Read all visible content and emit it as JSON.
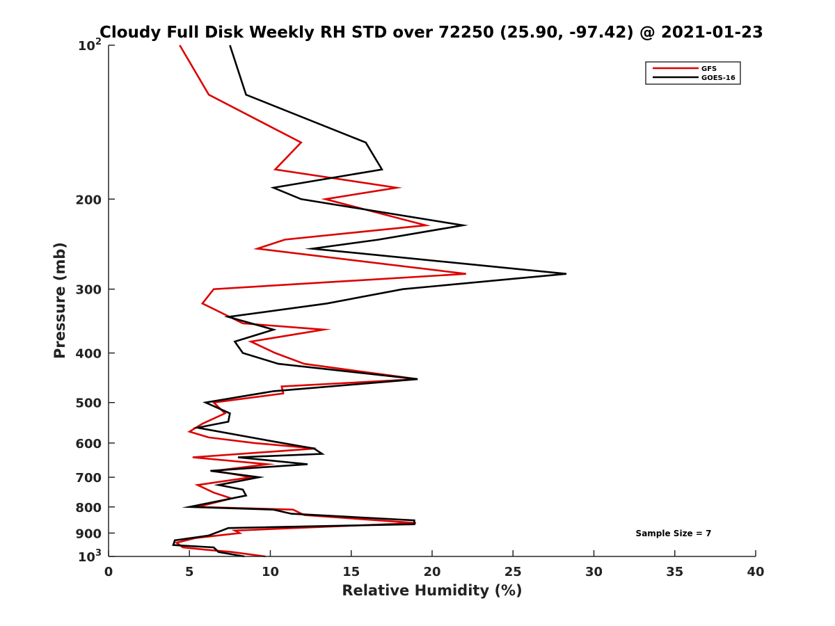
{
  "chart_data": {
    "type": "line",
    "title": "Cloudy Full Disk Weekly RH STD over 72250 (25.90, -97.42) @ 2021-01-23",
    "xlabel": "Relative Humidity (%)",
    "ylabel": "Pressure (mb)",
    "xlim": [
      0,
      40
    ],
    "ylim": [
      100,
      1000
    ],
    "y_scale": "log",
    "y_reversed": true,
    "x_ticks": [
      0,
      5,
      10,
      15,
      20,
      25,
      30,
      35,
      40
    ],
    "x_tick_labels": [
      "0",
      "5",
      "10",
      "15",
      "20",
      "25",
      "30",
      "35",
      "40"
    ],
    "y_ticks": [
      100,
      200,
      300,
      400,
      500,
      600,
      700,
      800,
      900,
      1000
    ],
    "y_tick_labels": [
      "10^2",
      "200",
      "300",
      "400",
      "500",
      "600",
      "700",
      "800",
      "900",
      "10^3"
    ],
    "grid": false,
    "legend_position": "top-right",
    "annotation": "Sample Size = 7",
    "series": [
      {
        "name": "GFS",
        "color": "#dd0000",
        "points": [
          {
            "x": 4.4,
            "y": 100
          },
          {
            "x": 6.2,
            "y": 125
          },
          {
            "x": 11.9,
            "y": 155
          },
          {
            "x": 10.3,
            "y": 175
          },
          {
            "x": 17.8,
            "y": 190
          },
          {
            "x": 13.4,
            "y": 200
          },
          {
            "x": 19.6,
            "y": 225
          },
          {
            "x": 10.9,
            "y": 240
          },
          {
            "x": 9.2,
            "y": 250
          },
          {
            "x": 22.1,
            "y": 280
          },
          {
            "x": 6.5,
            "y": 300
          },
          {
            "x": 5.8,
            "y": 320
          },
          {
            "x": 8.3,
            "y": 350
          },
          {
            "x": 13.3,
            "y": 360
          },
          {
            "x": 8.8,
            "y": 380
          },
          {
            "x": 10.3,
            "y": 400
          },
          {
            "x": 12.1,
            "y": 420
          },
          {
            "x": 19.1,
            "y": 450
          },
          {
            "x": 10.7,
            "y": 465
          },
          {
            "x": 10.8,
            "y": 480
          },
          {
            "x": 6.5,
            "y": 500
          },
          {
            "x": 7.2,
            "y": 525
          },
          {
            "x": 5.8,
            "y": 550
          },
          {
            "x": 5.0,
            "y": 570
          },
          {
            "x": 6.2,
            "y": 585
          },
          {
            "x": 9.0,
            "y": 600
          },
          {
            "x": 12.8,
            "y": 615
          },
          {
            "x": 5.2,
            "y": 640
          },
          {
            "x": 9.8,
            "y": 660
          },
          {
            "x": 6.6,
            "y": 680
          },
          {
            "x": 8.8,
            "y": 700
          },
          {
            "x": 5.5,
            "y": 725
          },
          {
            "x": 6.5,
            "y": 750
          },
          {
            "x": 7.6,
            "y": 770
          },
          {
            "x": 5.5,
            "y": 800
          },
          {
            "x": 11.4,
            "y": 810
          },
          {
            "x": 12.1,
            "y": 830
          },
          {
            "x": 19.0,
            "y": 860
          },
          {
            "x": 7.8,
            "y": 890
          },
          {
            "x": 8.1,
            "y": 900
          },
          {
            "x": 5.4,
            "y": 920
          },
          {
            "x": 4.2,
            "y": 940
          },
          {
            "x": 4.6,
            "y": 960
          },
          {
            "x": 6.0,
            "y": 970
          },
          {
            "x": 7.6,
            "y": 980
          },
          {
            "x": 9.7,
            "y": 1000
          }
        ]
      },
      {
        "name": "GOES-16",
        "color": "#000000",
        "points": [
          {
            "x": 7.5,
            "y": 100
          },
          {
            "x": 8.5,
            "y": 125
          },
          {
            "x": 15.9,
            "y": 155
          },
          {
            "x": 16.9,
            "y": 175
          },
          {
            "x": 10.2,
            "y": 190
          },
          {
            "x": 11.9,
            "y": 200
          },
          {
            "x": 21.9,
            "y": 225
          },
          {
            "x": 16.7,
            "y": 240
          },
          {
            "x": 12.6,
            "y": 250
          },
          {
            "x": 28.3,
            "y": 280
          },
          {
            "x": 18.2,
            "y": 300
          },
          {
            "x": 13.5,
            "y": 320
          },
          {
            "x": 7.4,
            "y": 340
          },
          {
            "x": 10.2,
            "y": 360
          },
          {
            "x": 7.8,
            "y": 380
          },
          {
            "x": 8.3,
            "y": 400
          },
          {
            "x": 10.5,
            "y": 420
          },
          {
            "x": 19.1,
            "y": 450
          },
          {
            "x": 10.2,
            "y": 475
          },
          {
            "x": 6.0,
            "y": 500
          },
          {
            "x": 7.5,
            "y": 525
          },
          {
            "x": 7.4,
            "y": 545
          },
          {
            "x": 5.5,
            "y": 560
          },
          {
            "x": 10.1,
            "y": 595
          },
          {
            "x": 12.7,
            "y": 615
          },
          {
            "x": 13.2,
            "y": 630
          },
          {
            "x": 8.0,
            "y": 640
          },
          {
            "x": 12.3,
            "y": 660
          },
          {
            "x": 6.3,
            "y": 680
          },
          {
            "x": 9.3,
            "y": 700
          },
          {
            "x": 6.8,
            "y": 725
          },
          {
            "x": 8.3,
            "y": 740
          },
          {
            "x": 8.5,
            "y": 760
          },
          {
            "x": 5.0,
            "y": 800
          },
          {
            "x": 10.2,
            "y": 810
          },
          {
            "x": 11.3,
            "y": 825
          },
          {
            "x": 18.9,
            "y": 850
          },
          {
            "x": 18.9,
            "y": 865
          },
          {
            "x": 7.4,
            "y": 880
          },
          {
            "x": 6.2,
            "y": 910
          },
          {
            "x": 4.1,
            "y": 930
          },
          {
            "x": 4.0,
            "y": 950
          },
          {
            "x": 6.5,
            "y": 960
          },
          {
            "x": 6.8,
            "y": 980
          },
          {
            "x": 8.4,
            "y": 1000
          }
        ]
      }
    ]
  }
}
